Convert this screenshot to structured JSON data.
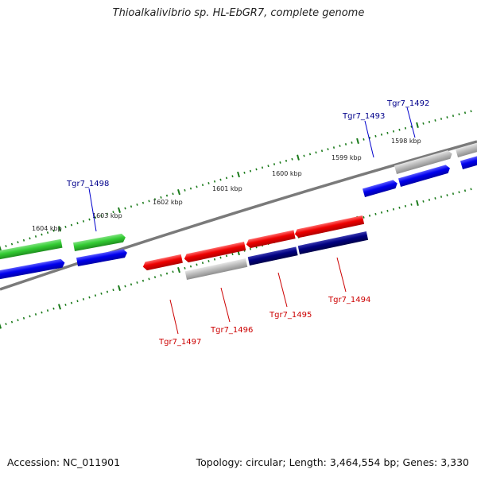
{
  "header": {
    "title": "Thioalkalivibrio sp. HL-EbGR7, complete genome"
  },
  "footer": {
    "accession": "Accession: NC_011901",
    "genome_info": "Topology: circular; Length: 3,464,554 bp; Genes: 3,330"
  },
  "map": {
    "colors": {
      "backbone": "#808080",
      "ticks": "#1a7a1a",
      "forward_label": "#00008b",
      "reverse_label": "#cc0000",
      "green_feature": "#33cc33",
      "blue_feature": "#0000ee",
      "red_feature": "#ee0000",
      "navy_feature": "#000080",
      "grey_feature": "#b3b3b3"
    },
    "ruler_labels": [
      "1604 kbp",
      "1603 kbp",
      "1602 kbp",
      "1601 kbp",
      "1600 kbp",
      "1599 kbp",
      "1598 kbp"
    ],
    "forward_gene_labels": [
      "Tgr7_1498",
      "Tgr7_1493",
      "Tgr7_1492"
    ],
    "reverse_gene_labels": [
      "Tgr7_1497",
      "Tgr7_1496",
      "Tgr7_1495",
      "Tgr7_1494"
    ]
  }
}
